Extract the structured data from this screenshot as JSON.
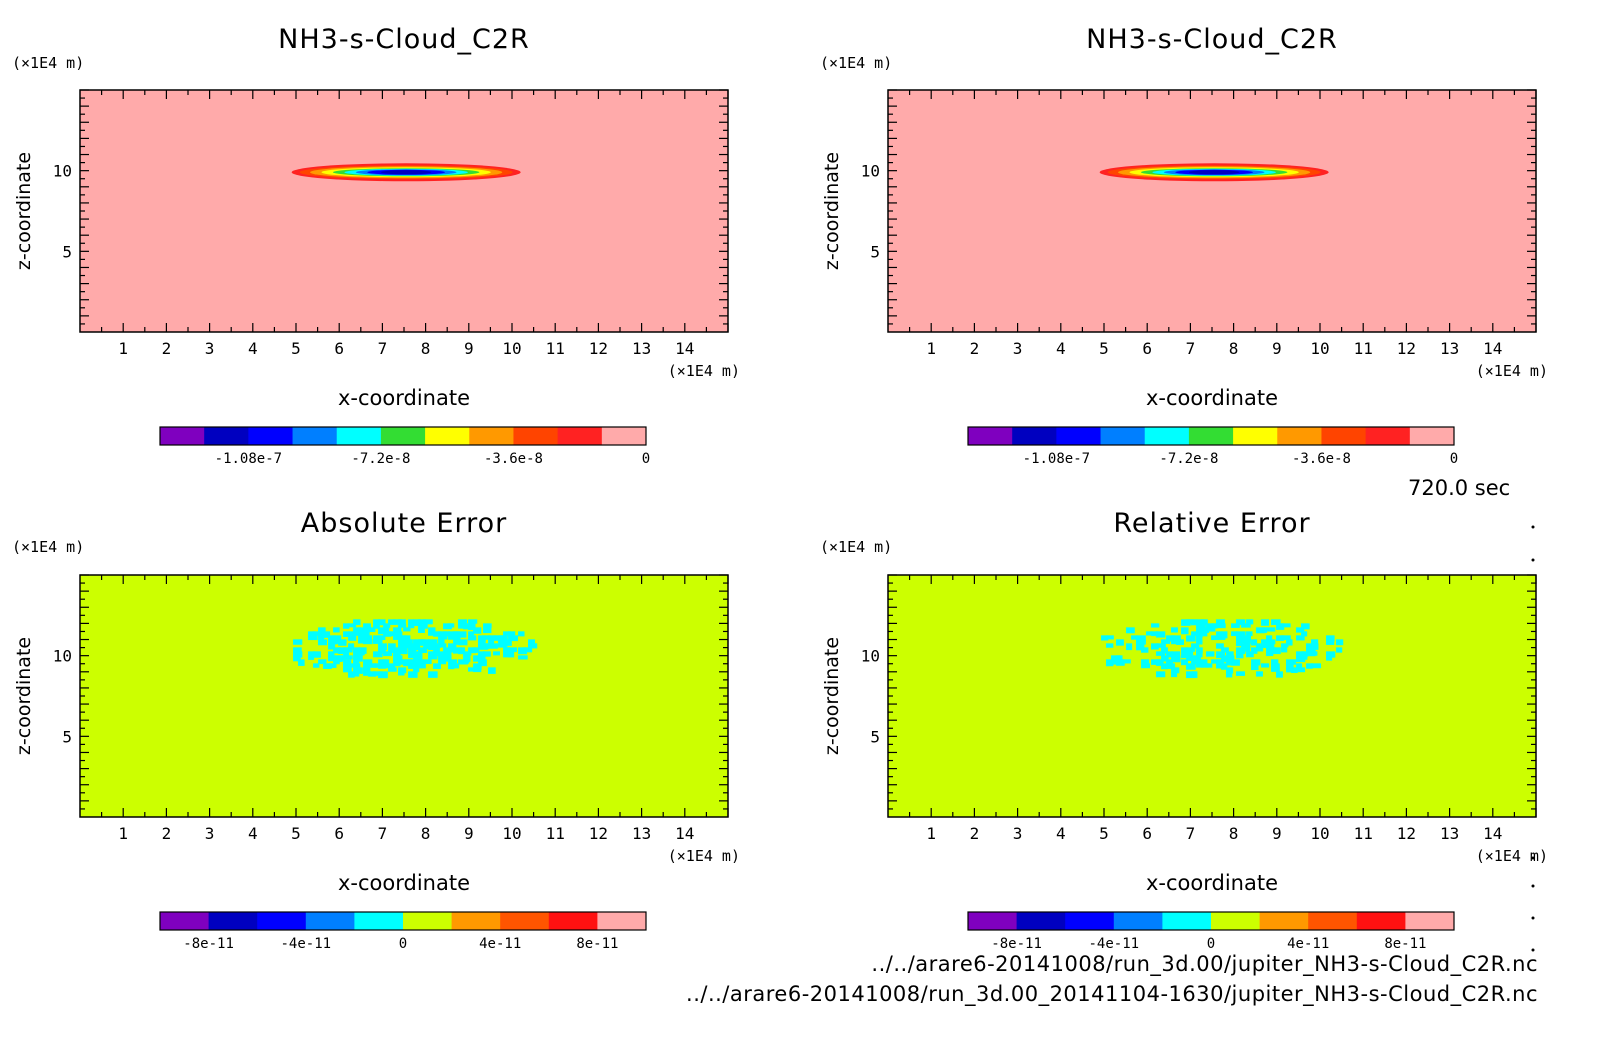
{
  "time_label": "720.0 sec",
  "footer_lines": [
    "../../arare6-20141008/run_3d.00/jupiter_NH3-s-Cloud_C2R.nc",
    "../../arare6-20141008/run_3d.00_20141104-1630/jupiter_NH3-s-Cloud_C2R.nc"
  ],
  "colors": {
    "background_top": "#ffaaaa",
    "background_bottom": "#ccff00",
    "error_patch": "#00ffff",
    "colorbar_top": [
      "#7f00bf",
      "#0000c0",
      "#0000ff",
      "#007fff",
      "#00ffff",
      "#33dd33",
      "#ffff00",
      "#ff9900",
      "#ff4400",
      "#ff2222",
      "#ffaaaa"
    ],
    "colorbar_bottom": [
      "#7f00bf",
      "#0000c0",
      "#0000ff",
      "#007fff",
      "#00ffff",
      "#ccff00",
      "#ff9900",
      "#ff5500",
      "#ff1111",
      "#ffaaaa"
    ]
  },
  "chart_data": [
    {
      "type": "heatmap",
      "title": "NH3-s-Cloud_C2R",
      "xlabel": "x-coordinate",
      "ylabel": "z-coordinate",
      "x_unit": "(×1E4 m)",
      "y_unit": "(×1E4 m)",
      "xlim": [
        0,
        15
      ],
      "ylim": [
        0,
        15
      ],
      "x_ticks": [
        "1",
        "2",
        "3",
        "4",
        "5",
        "6",
        "7",
        "8",
        "9",
        "10",
        "11",
        "12",
        "13",
        "14"
      ],
      "y_ticks": [
        "5",
        "10"
      ],
      "colorbar_labels": [
        "-1.08e-7",
        "-7.2e-8",
        "-3.6e-8",
        "0"
      ],
      "colorbar_range": [
        -1.32e-07,
        0
      ],
      "feature": {
        "kind": "lens",
        "x_range": [
          4.9,
          10.2
        ],
        "z_center": 9.9,
        "value_min": -1.2e-07
      },
      "background_value": 0
    },
    {
      "type": "heatmap",
      "title": "NH3-s-Cloud_C2R",
      "xlabel": "x-coordinate",
      "ylabel": "z-coordinate",
      "x_unit": "(×1E4 m)",
      "y_unit": "(×1E4 m)",
      "xlim": [
        0,
        15
      ],
      "ylim": [
        0,
        15
      ],
      "x_ticks": [
        "1",
        "2",
        "3",
        "4",
        "5",
        "6",
        "7",
        "8",
        "9",
        "10",
        "11",
        "12",
        "13",
        "14"
      ],
      "y_ticks": [
        "5",
        "10"
      ],
      "colorbar_labels": [
        "-1.08e-7",
        "-7.2e-8",
        "-3.6e-8",
        "0"
      ],
      "colorbar_range": [
        -1.32e-07,
        0
      ],
      "feature": {
        "kind": "lens",
        "x_range": [
          4.9,
          10.2
        ],
        "z_center": 9.9,
        "value_min": -1.2e-07
      },
      "background_value": 0
    },
    {
      "type": "heatmap",
      "title": "Absolute Error",
      "xlabel": "x-coordinate",
      "ylabel": "z-coordinate",
      "x_unit": "(×1E4 m)",
      "y_unit": "(×1E4 m)",
      "xlim": [
        0,
        15
      ],
      "ylim": [
        0,
        15
      ],
      "x_ticks": [
        "1",
        "2",
        "3",
        "4",
        "5",
        "6",
        "7",
        "8",
        "9",
        "10",
        "11",
        "12",
        "13",
        "14"
      ],
      "y_ticks": [
        "5",
        "10"
      ],
      "colorbar_labels": [
        "-8e-11",
        "-4e-11",
        "0",
        "4e-11",
        "8e-11"
      ],
      "colorbar_range": [
        -1e-10,
        1e-10
      ],
      "feature": {
        "kind": "noise",
        "x_range": [
          4.7,
          10.5
        ],
        "z_range": [
          8.8,
          12.5
        ],
        "value": -1e-11
      },
      "background_value": 0
    },
    {
      "type": "heatmap",
      "title": "Relative Error",
      "xlabel": "x-coordinate",
      "ylabel": "z-coordinate",
      "x_unit": "(×1E4 m)",
      "y_unit": "(×1E4 m)",
      "xlim": [
        0,
        15
      ],
      "ylim": [
        0,
        15
      ],
      "x_ticks": [
        "1",
        "2",
        "3",
        "4",
        "5",
        "6",
        "7",
        "8",
        "9",
        "10",
        "11",
        "12",
        "13",
        "14"
      ],
      "y_ticks": [
        "5",
        "10"
      ],
      "colorbar_labels": [
        "-8e-11",
        "-4e-11",
        "0",
        "4e-11",
        "8e-11"
      ],
      "colorbar_range": [
        -1e-10,
        1e-10
      ],
      "feature": {
        "kind": "noise",
        "x_range": [
          4.7,
          10.5
        ],
        "z_range": [
          8.8,
          12.5
        ],
        "value": -1e-11
      },
      "background_value": 0
    }
  ]
}
